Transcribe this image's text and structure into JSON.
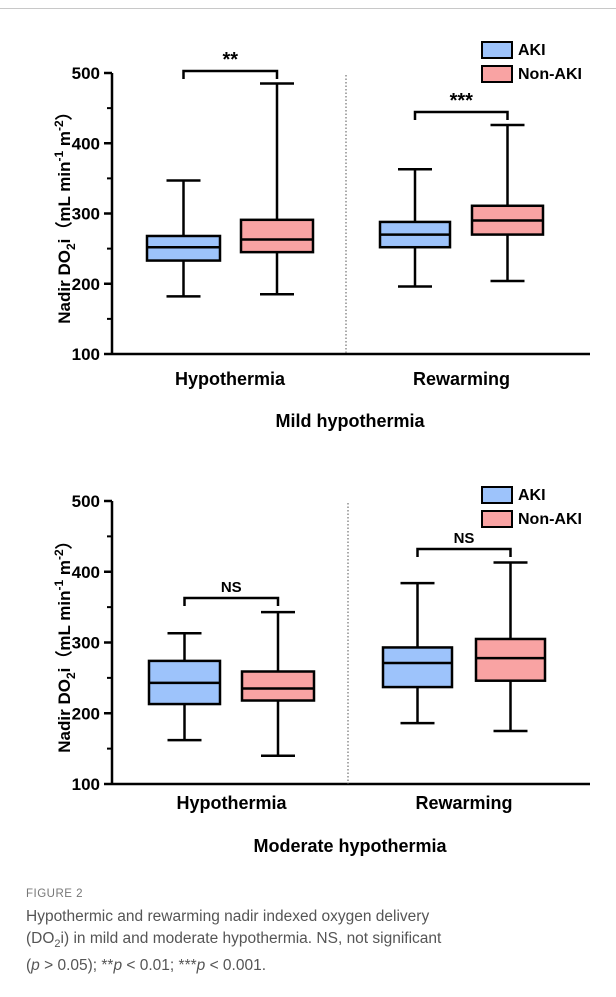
{
  "colors": {
    "aki": "#9dc3fb",
    "non_aki": "#f9a3a3",
    "stroke": "#000000"
  },
  "chart_data": [
    {
      "type": "box",
      "panel": "mild",
      "title": "Mild hypothermia",
      "ylabel": "Nadir DO2i（mL min-1 m-2）",
      "ylim": [
        100,
        500
      ],
      "yticks": [
        100,
        200,
        300,
        400,
        500
      ],
      "categories": [
        "Hypothermia",
        "Rewarming"
      ],
      "legend": [
        "AKI",
        "Non-AKI"
      ],
      "legend_position": "top-right",
      "series": [
        {
          "name": "AKI",
          "boxes": [
            {
              "min": 182,
              "q1": 233,
              "median": 252,
              "q3": 268,
              "max": 347
            },
            {
              "min": 196,
              "q1": 252,
              "median": 270,
              "q3": 288,
              "max": 363
            }
          ]
        },
        {
          "name": "Non-AKI",
          "boxes": [
            {
              "min": 185,
              "q1": 245,
              "median": 263,
              "q3": 291,
              "max": 485
            },
            {
              "min": 204,
              "q1": 270,
              "median": 290,
              "q3": 311,
              "max": 426
            }
          ]
        }
      ],
      "significance": [
        "**",
        "***"
      ]
    },
    {
      "type": "box",
      "panel": "moderate",
      "title": "Moderate hypothermia",
      "ylabel": "Nadir DO2i（mL min-1 m-2）",
      "ylim": [
        100,
        500
      ],
      "yticks": [
        100,
        200,
        300,
        400,
        500
      ],
      "categories": [
        "Hypothermia",
        "Rewarming"
      ],
      "legend": [
        "AKI",
        "Non-AKI"
      ],
      "legend_position": "top-right",
      "series": [
        {
          "name": "AKI",
          "boxes": [
            {
              "min": 162,
              "q1": 213,
              "median": 243,
              "q3": 274,
              "max": 313
            },
            {
              "min": 186,
              "q1": 237,
              "median": 271,
              "q3": 293,
              "max": 384
            }
          ]
        },
        {
          "name": "Non-AKI",
          "boxes": [
            {
              "min": 140,
              "q1": 218,
              "median": 235,
              "q3": 259,
              "max": 343
            },
            {
              "min": 175,
              "q1": 246,
              "median": 278,
              "q3": 305,
              "max": 413
            }
          ]
        }
      ],
      "significance": [
        "NS",
        "NS"
      ]
    }
  ],
  "caption": {
    "label": "FIGURE 2",
    "line1": "Hypothermic and rewarming nadir indexed oxygen delivery",
    "line2": "(DO2i) in mild and moderate hypothermia. NS, not significant",
    "line3": "(p > 0.05); **p < 0.01; ***p < 0.001."
  }
}
